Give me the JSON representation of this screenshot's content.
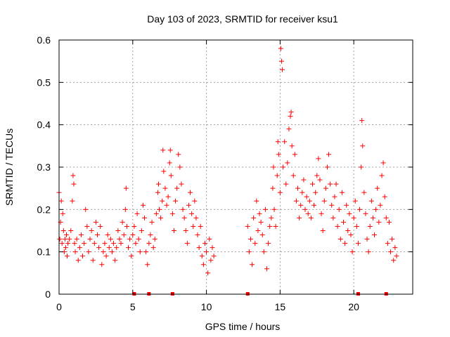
{
  "chart_data": {
    "type": "scatter",
    "title": "Day 103 of 2023, SRMTID for receiver ksu1",
    "xlabel": "GPS time / hours",
    "ylabel": "SRMTID / TECUs",
    "xlim": [
      0,
      24
    ],
    "ylim": [
      0,
      0.6
    ],
    "xticks": [
      0,
      5,
      10,
      15,
      20
    ],
    "xtick_labels": [
      "0",
      "5",
      "10",
      "15",
      "20"
    ],
    "yticks": [
      0,
      0.1,
      0.2,
      0.3,
      0.4,
      0.5,
      0.6
    ],
    "ytick_labels": [
      "0",
      "0.1",
      "0.2",
      "0.3",
      "0.4",
      "0.5",
      "0.6"
    ],
    "grid": true,
    "marker": "+",
    "color": "#ff0000",
    "data_gap_hours": [
      10.6,
      12.7
    ],
    "baseline_markers_x": [
      5.1,
      6.1,
      7.7,
      12.8,
      20.3,
      22.2
    ],
    "series": [
      {
        "name": "ksu1",
        "points": [
          [
            0.0,
            0.24
          ],
          [
            0.05,
            0.13
          ],
          [
            0.1,
            0.17
          ],
          [
            0.15,
            0.22
          ],
          [
            0.2,
            0.12
          ],
          [
            0.25,
            0.19
          ],
          [
            0.3,
            0.15
          ],
          [
            0.35,
            0.1
          ],
          [
            0.4,
            0.13
          ],
          [
            0.45,
            0.11
          ],
          [
            0.5,
            0.14
          ],
          [
            0.55,
            0.09
          ],
          [
            0.6,
            0.12
          ],
          [
            0.7,
            0.13
          ],
          [
            0.8,
            0.15
          ],
          [
            0.9,
            0.22
          ],
          [
            0.95,
            0.28
          ],
          [
            1.0,
            0.26
          ],
          [
            1.05,
            0.12
          ],
          [
            1.1,
            0.1
          ],
          [
            1.2,
            0.13
          ],
          [
            1.3,
            0.08
          ],
          [
            1.4,
            0.11
          ],
          [
            1.5,
            0.14
          ],
          [
            1.6,
            0.09
          ],
          [
            1.7,
            0.12
          ],
          [
            1.8,
            0.2
          ],
          [
            1.9,
            0.16
          ],
          [
            2.0,
            0.1
          ],
          [
            2.1,
            0.13
          ],
          [
            2.2,
            0.15
          ],
          [
            2.3,
            0.08
          ],
          [
            2.4,
            0.12
          ],
          [
            2.5,
            0.17
          ],
          [
            2.6,
            0.14
          ],
          [
            2.7,
            0.11
          ],
          [
            2.8,
            0.16
          ],
          [
            2.9,
            0.07
          ],
          [
            3.0,
            0.1
          ],
          [
            3.1,
            0.12
          ],
          [
            3.2,
            0.09
          ],
          [
            3.3,
            0.14
          ],
          [
            3.4,
            0.11
          ],
          [
            3.5,
            0.13
          ],
          [
            3.6,
            0.1
          ],
          [
            3.7,
            0.12
          ],
          [
            3.8,
            0.08
          ],
          [
            3.9,
            0.11
          ],
          [
            4.0,
            0.15
          ],
          [
            4.1,
            0.13
          ],
          [
            4.2,
            0.12
          ],
          [
            4.3,
            0.17
          ],
          [
            4.4,
            0.14
          ],
          [
            4.5,
            0.2
          ],
          [
            4.55,
            0.25
          ],
          [
            4.6,
            0.16
          ],
          [
            4.7,
            0.11
          ],
          [
            4.8,
            0.13
          ],
          [
            4.9,
            0.09
          ],
          [
            5.0,
            0.14
          ],
          [
            5.1,
            0.16
          ],
          [
            5.2,
            0.12
          ],
          [
            5.3,
            0.19
          ],
          [
            5.4,
            0.13
          ],
          [
            5.5,
            0.1
          ],
          [
            5.6,
            0.15
          ],
          [
            5.7,
            0.21
          ],
          [
            5.8,
            0.18
          ],
          [
            5.9,
            0.1
          ],
          [
            6.0,
            0.07
          ],
          [
            6.1,
            0.12
          ],
          [
            6.2,
            0.14
          ],
          [
            6.3,
            0.17
          ],
          [
            6.4,
            0.11
          ],
          [
            6.5,
            0.13
          ],
          [
            6.6,
            0.19
          ],
          [
            6.7,
            0.24
          ],
          [
            6.75,
            0.26
          ],
          [
            6.8,
            0.2
          ],
          [
            6.9,
            0.18
          ],
          [
            7.0,
            0.22
          ],
          [
            7.05,
            0.34
          ],
          [
            7.1,
            0.29
          ],
          [
            7.2,
            0.25
          ],
          [
            7.3,
            0.21
          ],
          [
            7.4,
            0.23
          ],
          [
            7.5,
            0.31
          ],
          [
            7.55,
            0.34
          ],
          [
            7.6,
            0.28
          ],
          [
            7.7,
            0.19
          ],
          [
            7.8,
            0.15
          ],
          [
            7.9,
            0.22
          ],
          [
            8.0,
            0.25
          ],
          [
            8.1,
            0.33
          ],
          [
            8.2,
            0.3
          ],
          [
            8.3,
            0.26
          ],
          [
            8.4,
            0.2
          ],
          [
            8.5,
            0.18
          ],
          [
            8.6,
            0.15
          ],
          [
            8.7,
            0.12
          ],
          [
            8.8,
            0.21
          ],
          [
            8.9,
            0.24
          ],
          [
            9.0,
            0.19
          ],
          [
            9.1,
            0.16
          ],
          [
            9.2,
            0.22
          ],
          [
            9.3,
            0.18
          ],
          [
            9.4,
            0.14
          ],
          [
            9.5,
            0.11
          ],
          [
            9.6,
            0.16
          ],
          [
            9.7,
            0.09
          ],
          [
            9.8,
            0.07
          ],
          [
            9.9,
            0.12
          ],
          [
            10.0,
            0.1
          ],
          [
            10.1,
            0.05
          ],
          [
            10.2,
            0.13
          ],
          [
            10.3,
            0.08
          ],
          [
            10.4,
            0.11
          ],
          [
            10.5,
            0.09
          ],
          [
            12.8,
            0.16
          ],
          [
            12.9,
            0.1
          ],
          [
            13.0,
            0.13
          ],
          [
            13.1,
            0.07
          ],
          [
            13.2,
            0.18
          ],
          [
            13.3,
            0.12
          ],
          [
            13.4,
            0.22
          ],
          [
            13.5,
            0.15
          ],
          [
            13.6,
            0.19
          ],
          [
            13.7,
            0.17
          ],
          [
            13.8,
            0.14
          ],
          [
            13.9,
            0.1
          ],
          [
            14.0,
            0.2
          ],
          [
            14.1,
            0.06
          ],
          [
            14.2,
            0.12
          ],
          [
            14.3,
            0.16
          ],
          [
            14.4,
            0.18
          ],
          [
            14.5,
            0.25
          ],
          [
            14.55,
            0.3
          ],
          [
            14.6,
            0.2
          ],
          [
            14.7,
            0.16
          ],
          [
            14.8,
            0.28
          ],
          [
            14.85,
            0.36
          ],
          [
            14.9,
            0.33
          ],
          [
            15.0,
            0.24
          ],
          [
            15.05,
            0.58
          ],
          [
            15.1,
            0.55
          ],
          [
            15.15,
            0.53
          ],
          [
            15.2,
            0.3
          ],
          [
            15.3,
            0.36
          ],
          [
            15.4,
            0.26
          ],
          [
            15.5,
            0.31
          ],
          [
            15.6,
            0.39
          ],
          [
            15.7,
            0.42
          ],
          [
            15.75,
            0.43
          ],
          [
            15.8,
            0.35
          ],
          [
            15.9,
            0.28
          ],
          [
            16.0,
            0.33
          ],
          [
            16.1,
            0.22
          ],
          [
            16.2,
            0.25
          ],
          [
            16.3,
            0.18
          ],
          [
            16.4,
            0.21
          ],
          [
            16.5,
            0.24
          ],
          [
            16.6,
            0.27
          ],
          [
            16.7,
            0.2
          ],
          [
            16.8,
            0.23
          ],
          [
            16.9,
            0.19
          ],
          [
            17.0,
            0.22
          ],
          [
            17.1,
            0.18
          ],
          [
            17.2,
            0.26
          ],
          [
            17.3,
            0.21
          ],
          [
            17.4,
            0.24
          ],
          [
            17.5,
            0.28
          ],
          [
            17.6,
            0.32
          ],
          [
            17.7,
            0.27
          ],
          [
            17.8,
            0.19
          ],
          [
            17.9,
            0.15
          ],
          [
            18.0,
            0.22
          ],
          [
            18.1,
            0.25
          ],
          [
            18.2,
            0.3
          ],
          [
            18.3,
            0.33
          ],
          [
            18.4,
            0.26
          ],
          [
            18.5,
            0.21
          ],
          [
            18.6,
            0.18
          ],
          [
            18.7,
            0.23
          ],
          [
            18.8,
            0.26
          ],
          [
            18.9,
            0.16
          ],
          [
            19.0,
            0.2
          ],
          [
            19.1,
            0.13
          ],
          [
            19.2,
            0.24
          ],
          [
            19.3,
            0.17
          ],
          [
            19.4,
            0.12
          ],
          [
            19.5,
            0.21
          ],
          [
            19.6,
            0.15
          ],
          [
            19.7,
            0.19
          ],
          [
            19.8,
            0.14
          ],
          [
            19.9,
            0.1
          ],
          [
            20.0,
            0.18
          ],
          [
            20.1,
            0.22
          ],
          [
            20.2,
            0.16
          ],
          [
            20.3,
            0.12
          ],
          [
            20.4,
            0.2
          ],
          [
            20.5,
            0.3
          ],
          [
            20.55,
            0.41
          ],
          [
            20.6,
            0.35
          ],
          [
            20.7,
            0.24
          ],
          [
            20.8,
            0.19
          ],
          [
            20.9,
            0.13
          ],
          [
            21.0,
            0.1
          ],
          [
            21.1,
            0.16
          ],
          [
            21.2,
            0.22
          ],
          [
            21.3,
            0.18
          ],
          [
            21.4,
            0.14
          ],
          [
            21.5,
            0.2
          ],
          [
            21.6,
            0.25
          ],
          [
            21.7,
            0.17
          ],
          [
            21.8,
            0.21
          ],
          [
            21.9,
            0.28
          ],
          [
            22.0,
            0.31
          ],
          [
            22.1,
            0.23
          ],
          [
            22.2,
            0.18
          ],
          [
            22.3,
            0.12
          ],
          [
            22.4,
            0.17
          ],
          [
            22.5,
            0.1
          ],
          [
            22.6,
            0.13
          ],
          [
            22.7,
            0.08
          ],
          [
            22.8,
            0.11
          ],
          [
            22.9,
            0.09
          ]
        ]
      }
    ]
  }
}
